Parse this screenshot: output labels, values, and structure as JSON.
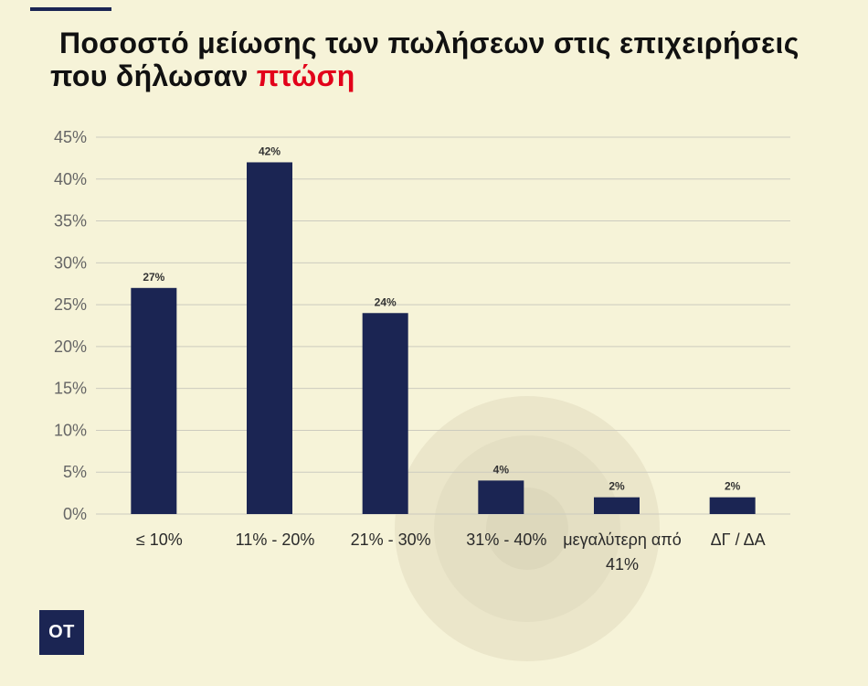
{
  "colors": {
    "background": "#f6f3d8",
    "bar": "#1b2553",
    "highlight": "#e2001a",
    "accent": "#1b2553"
  },
  "brand": {
    "logo_text": "OT"
  },
  "chart_data": {
    "type": "bar",
    "title": {
      "line1": "Ποσοστό μείωσης των πωλήσεων στις επιχειρήσεις",
      "line2": "που δήλωσαν",
      "highlight": "πτώση"
    },
    "categories": [
      "≤ 10%",
      "11% - 20%",
      "21% - 30%",
      "31% - 40%",
      "μεγαλύτερη από 41%",
      "ΔΓ / ΔΑ"
    ],
    "values": [
      27,
      42,
      24,
      4,
      2,
      2
    ],
    "data_labels": [
      "27%",
      "42%",
      "24%",
      "4%",
      "2%",
      "2%"
    ],
    "ylim": [
      0,
      45
    ],
    "yticks": [
      0,
      5,
      10,
      15,
      20,
      25,
      30,
      35,
      40,
      45
    ],
    "ytick_labels": [
      "0%",
      "5%",
      "10%",
      "15%",
      "20%",
      "25%",
      "30%",
      "35%",
      "40%",
      "45%"
    ],
    "grid": true
  }
}
